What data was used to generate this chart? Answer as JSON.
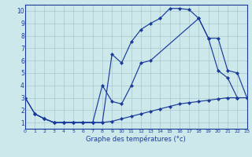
{
  "xlabel": "Graphe des températures (°c)",
  "xlim": [
    0,
    23
  ],
  "ylim": [
    0.5,
    10.5
  ],
  "xticks": [
    0,
    1,
    2,
    3,
    4,
    5,
    6,
    7,
    8,
    9,
    10,
    11,
    12,
    13,
    14,
    15,
    16,
    17,
    18,
    19,
    20,
    21,
    22,
    23
  ],
  "yticks": [
    1,
    2,
    3,
    4,
    5,
    6,
    7,
    8,
    9,
    10
  ],
  "bg_color": "#cce8ea",
  "grid_color": "#aac8cc",
  "line_color": "#1a3a9a",
  "line1_x": [
    0,
    1,
    2,
    3,
    4,
    5,
    6,
    7,
    8,
    9,
    10,
    11,
    12,
    13,
    14,
    15,
    16,
    17,
    18,
    19,
    20,
    21,
    22
  ],
  "line1_y": [
    3,
    1.7,
    1.3,
    1.0,
    1.0,
    1.0,
    1.0,
    1.0,
    1.0,
    6.5,
    5.8,
    7.5,
    8.5,
    9.0,
    9.4,
    10.2,
    10.2,
    10.1,
    9.4,
    7.8,
    5.2,
    4.6,
    3.0
  ],
  "line2_x": [
    0,
    1,
    2,
    3,
    4,
    5,
    6,
    7,
    8,
    9,
    10,
    11,
    12,
    13,
    18,
    19,
    20,
    21,
    22,
    23
  ],
  "line2_y": [
    3,
    1.7,
    1.3,
    1.0,
    1.0,
    1.0,
    1.0,
    1.0,
    4.0,
    2.7,
    2.5,
    4.0,
    5.8,
    6.0,
    9.4,
    7.8,
    7.8,
    5.2,
    5.0,
    3.0
  ],
  "line3_x": [
    1,
    2,
    3,
    4,
    5,
    6,
    7,
    8,
    9,
    10,
    11,
    12,
    13,
    14,
    15,
    16,
    17,
    18,
    19,
    20,
    21,
    22,
    23
  ],
  "line3_y": [
    1.7,
    1.3,
    1.0,
    1.0,
    1.0,
    1.0,
    1.0,
    1.0,
    1.1,
    1.3,
    1.5,
    1.7,
    1.9,
    2.1,
    2.3,
    2.5,
    2.6,
    2.7,
    2.8,
    2.9,
    3.0,
    3.0,
    3.0
  ]
}
